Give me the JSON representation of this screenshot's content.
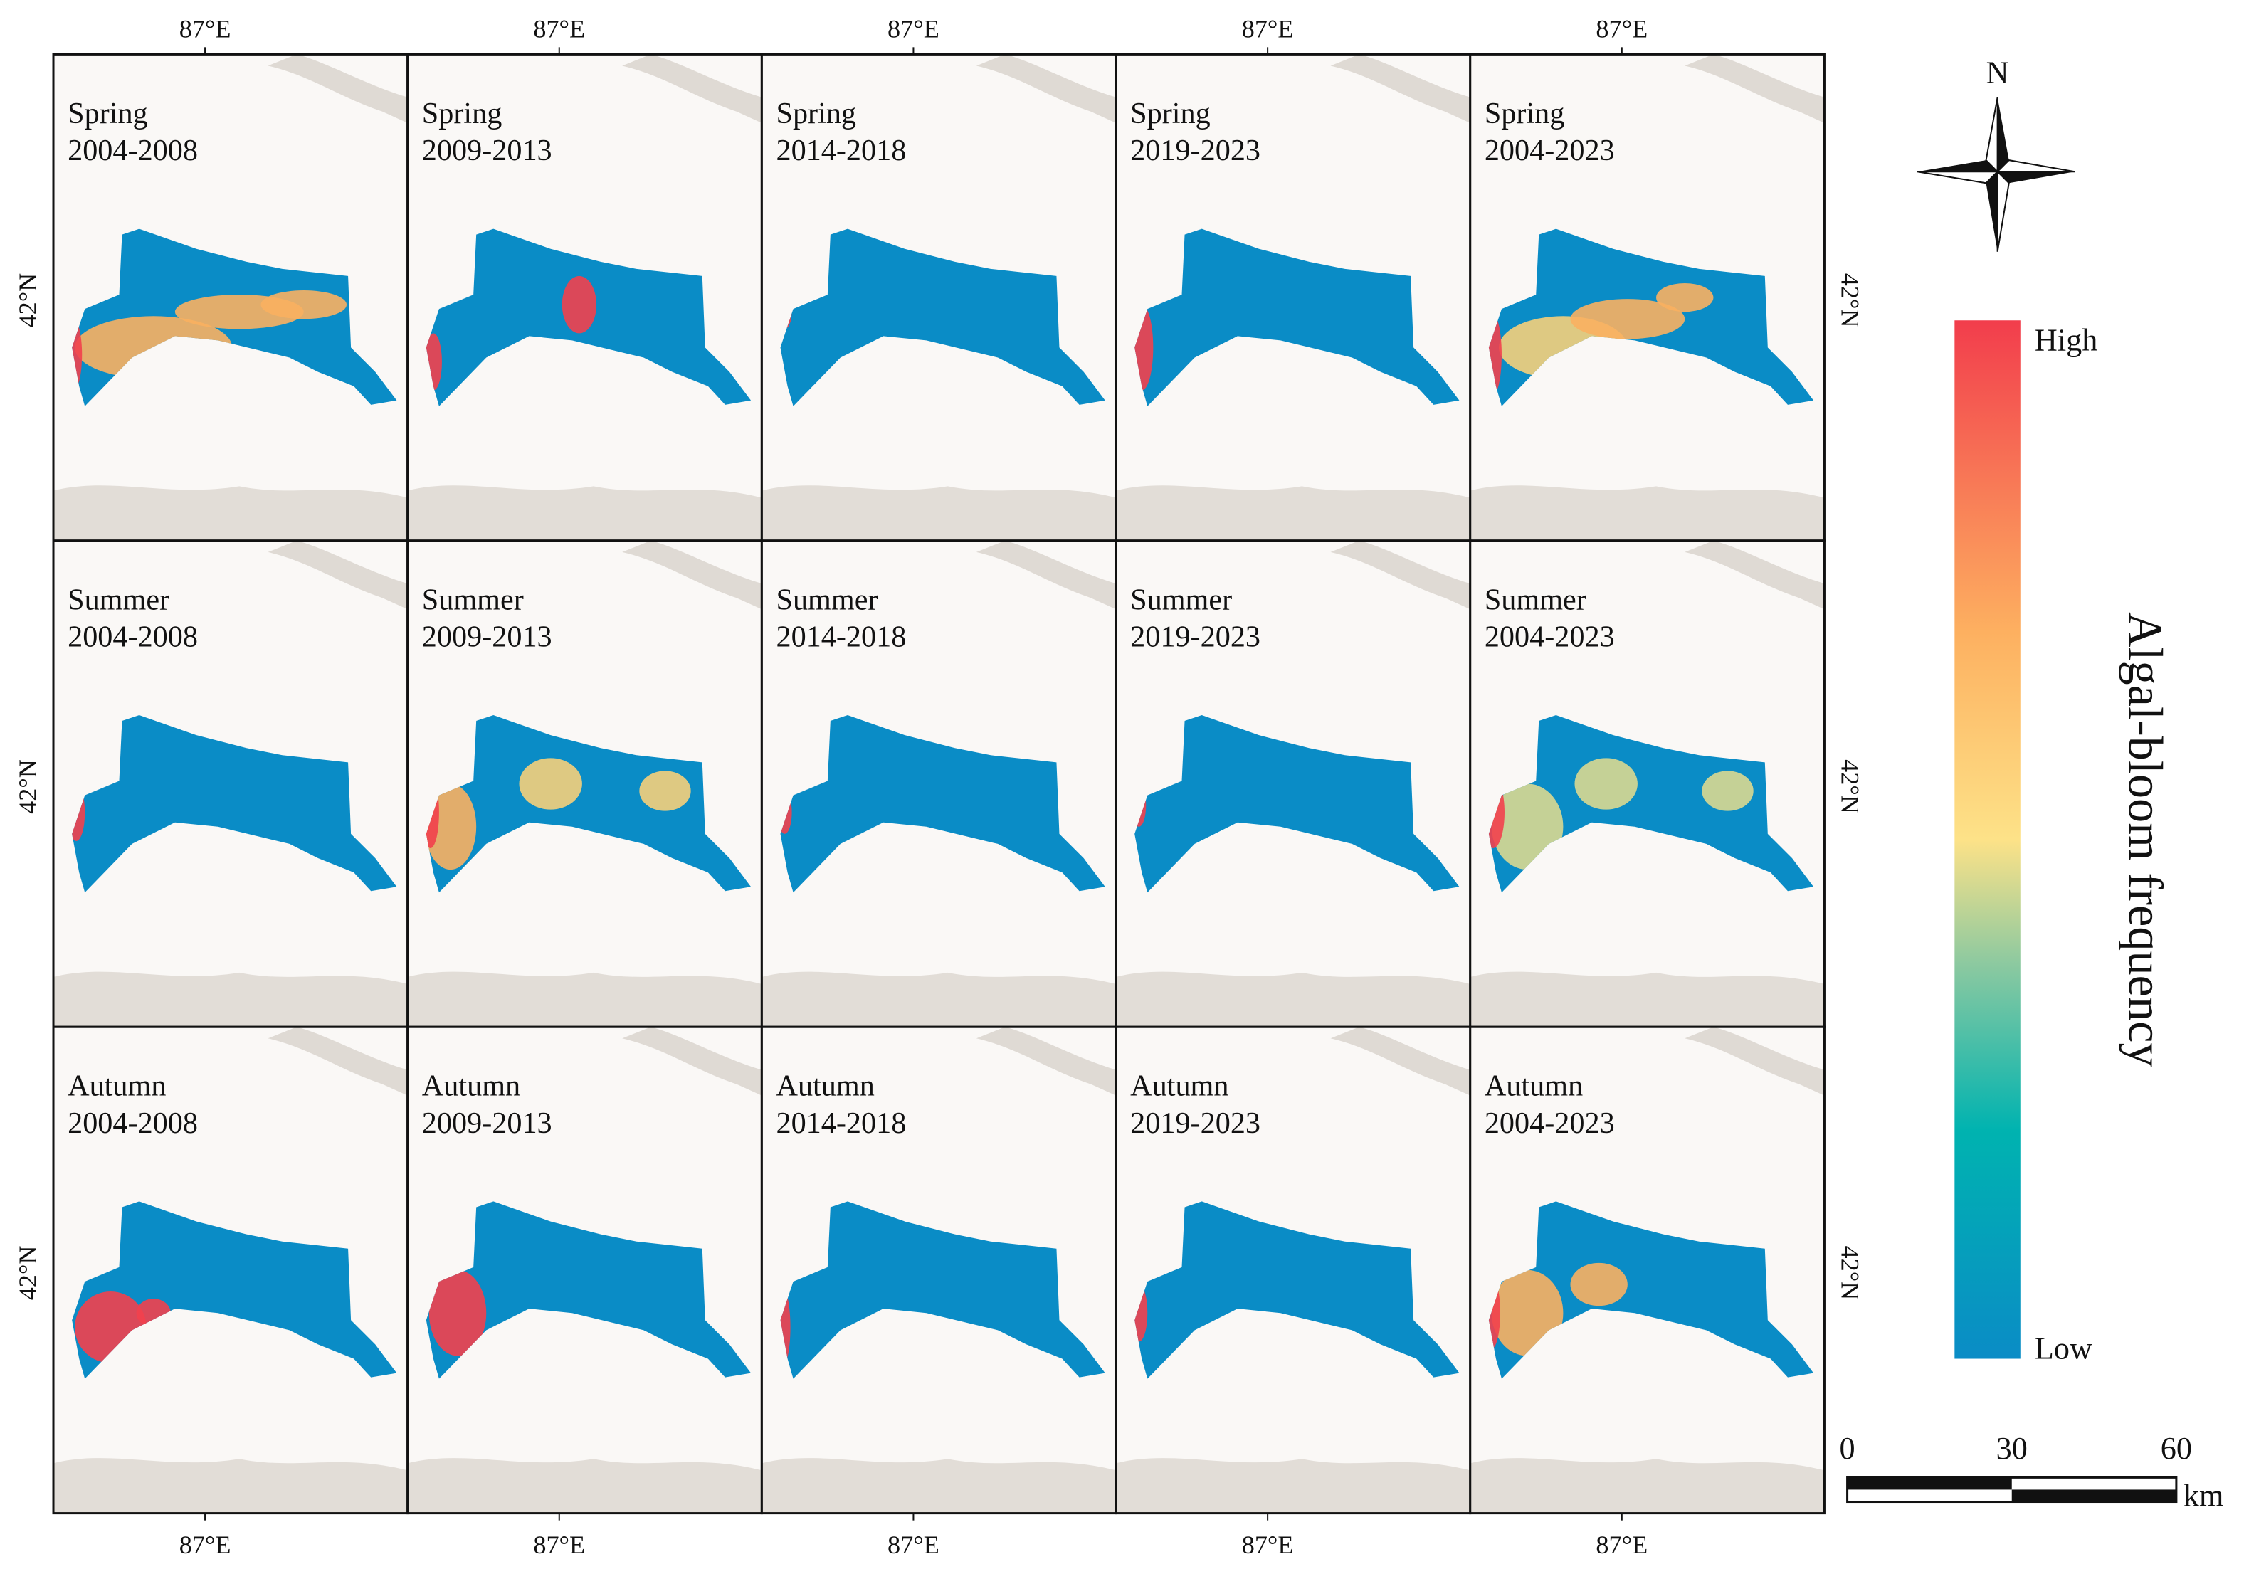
{
  "panels": [
    {
      "season": "Spring",
      "period": "2004-2008"
    },
    {
      "season": "Spring",
      "period": "2009-2013"
    },
    {
      "season": "Spring",
      "period": "2014-2018"
    },
    {
      "season": "Spring",
      "period": "2019-2023"
    },
    {
      "season": "Spring",
      "period": "2004-2023"
    },
    {
      "season": "Summer",
      "period": "2004-2008"
    },
    {
      "season": "Summer",
      "period": "2009-2013"
    },
    {
      "season": "Summer",
      "period": "2014-2018"
    },
    {
      "season": "Summer",
      "period": "2019-2023"
    },
    {
      "season": "Summer",
      "period": "2004-2023"
    },
    {
      "season": "Autumn",
      "period": "2004-2008"
    },
    {
      "season": "Autumn",
      "period": "2009-2013"
    },
    {
      "season": "Autumn",
      "period": "2014-2018"
    },
    {
      "season": "Autumn",
      "period": "2019-2023"
    },
    {
      "season": "Autumn",
      "period": "2004-2023"
    }
  ],
  "lon_label": "87°E",
  "lat_label": "42°N",
  "north": "N",
  "legend": {
    "title": "Algal-bloom frequency",
    "high": "High",
    "low": "Low"
  },
  "scale_bar": {
    "ticks": [
      0,
      30,
      60
    ],
    "unit": "km"
  }
}
